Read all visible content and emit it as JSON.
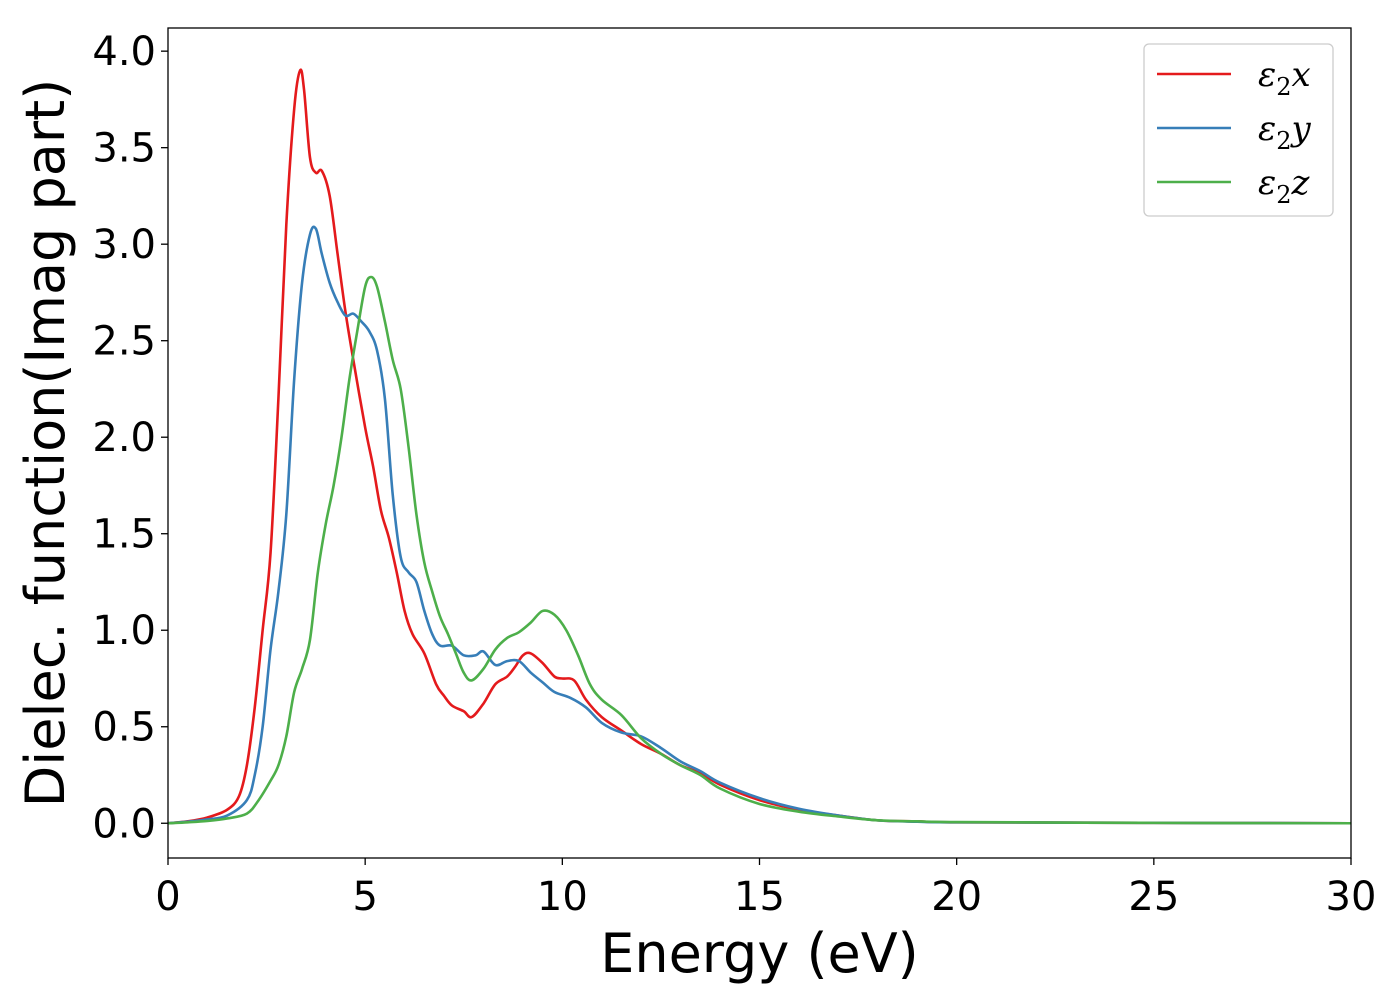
{
  "chart_data": {
    "type": "line",
    "title": "",
    "xlabel": "Energy (eV)",
    "ylabel": "Dielec. function(Imag part)",
    "xlim": [
      0,
      30
    ],
    "ylim": [
      -0.18,
      4.12
    ],
    "xticks": [
      0,
      5,
      10,
      15,
      20,
      25,
      30
    ],
    "xtick_labels": [
      "0",
      "5",
      "10",
      "15",
      "20",
      "25",
      "30"
    ],
    "yticks": [
      0.0,
      0.5,
      1.0,
      1.5,
      2.0,
      2.5,
      3.0,
      3.5,
      4.0
    ],
    "ytick_labels": [
      "0.0",
      "0.5",
      "1.0",
      "1.5",
      "2.0",
      "2.5",
      "3.0",
      "3.5",
      "4.0"
    ],
    "grid": false,
    "legend_position": "top-right",
    "series": [
      {
        "name": "ε₂x",
        "legend_base": "ε",
        "legend_sub": "2",
        "legend_suffix": "x",
        "color": "#e41a1c",
        "points": [
          [
            0,
            0
          ],
          [
            0.5,
            0.01
          ],
          [
            1.0,
            0.03
          ],
          [
            1.5,
            0.07
          ],
          [
            1.8,
            0.14
          ],
          [
            2.0,
            0.3
          ],
          [
            2.2,
            0.6
          ],
          [
            2.4,
            1.0
          ],
          [
            2.6,
            1.4
          ],
          [
            2.8,
            2.2
          ],
          [
            3.0,
            3.1
          ],
          [
            3.2,
            3.7
          ],
          [
            3.35,
            3.9
          ],
          [
            3.45,
            3.8
          ],
          [
            3.6,
            3.45
          ],
          [
            3.75,
            3.37
          ],
          [
            3.9,
            3.38
          ],
          [
            4.1,
            3.25
          ],
          [
            4.3,
            2.95
          ],
          [
            4.5,
            2.65
          ],
          [
            4.7,
            2.4
          ],
          [
            5.0,
            2.05
          ],
          [
            5.2,
            1.85
          ],
          [
            5.4,
            1.62
          ],
          [
            5.6,
            1.48
          ],
          [
            5.8,
            1.3
          ],
          [
            6.0,
            1.1
          ],
          [
            6.2,
            0.98
          ],
          [
            6.5,
            0.88
          ],
          [
            6.8,
            0.72
          ],
          [
            7.0,
            0.66
          ],
          [
            7.2,
            0.61
          ],
          [
            7.5,
            0.58
          ],
          [
            7.7,
            0.55
          ],
          [
            8.0,
            0.62
          ],
          [
            8.3,
            0.72
          ],
          [
            8.6,
            0.76
          ],
          [
            8.8,
            0.81
          ],
          [
            9.0,
            0.87
          ],
          [
            9.2,
            0.88
          ],
          [
            9.5,
            0.83
          ],
          [
            9.8,
            0.76
          ],
          [
            10.0,
            0.75
          ],
          [
            10.3,
            0.74
          ],
          [
            10.6,
            0.64
          ],
          [
            11.0,
            0.55
          ],
          [
            11.5,
            0.48
          ],
          [
            12.0,
            0.41
          ],
          [
            12.5,
            0.36
          ],
          [
            13.0,
            0.3
          ],
          [
            13.5,
            0.26
          ],
          [
            14.0,
            0.2
          ],
          [
            15.0,
            0.12
          ],
          [
            16.0,
            0.07
          ],
          [
            17.0,
            0.04
          ],
          [
            18.0,
            0.015
          ],
          [
            19.0,
            0.01
          ],
          [
            20.0,
            0.005
          ],
          [
            25.0,
            0.002
          ],
          [
            30.0,
            0.0
          ]
        ]
      },
      {
        "name": "ε₂y",
        "legend_base": "ε",
        "legend_sub": "2",
        "legend_suffix": "y",
        "color": "#377eb8",
        "points": [
          [
            0,
            0
          ],
          [
            0.5,
            0.008
          ],
          [
            1.0,
            0.02
          ],
          [
            1.5,
            0.04
          ],
          [
            2.0,
            0.12
          ],
          [
            2.2,
            0.25
          ],
          [
            2.4,
            0.5
          ],
          [
            2.6,
            0.9
          ],
          [
            2.8,
            1.2
          ],
          [
            3.0,
            1.6
          ],
          [
            3.2,
            2.3
          ],
          [
            3.4,
            2.8
          ],
          [
            3.6,
            3.05
          ],
          [
            3.75,
            3.08
          ],
          [
            3.9,
            2.95
          ],
          [
            4.1,
            2.8
          ],
          [
            4.3,
            2.7
          ],
          [
            4.5,
            2.63
          ],
          [
            4.7,
            2.64
          ],
          [
            4.9,
            2.6
          ],
          [
            5.1,
            2.55
          ],
          [
            5.3,
            2.45
          ],
          [
            5.5,
            2.2
          ],
          [
            5.7,
            1.7
          ],
          [
            5.9,
            1.38
          ],
          [
            6.1,
            1.3
          ],
          [
            6.3,
            1.25
          ],
          [
            6.5,
            1.1
          ],
          [
            6.7,
            0.98
          ],
          [
            6.9,
            0.92
          ],
          [
            7.2,
            0.92
          ],
          [
            7.5,
            0.87
          ],
          [
            7.8,
            0.87
          ],
          [
            8.0,
            0.89
          ],
          [
            8.3,
            0.82
          ],
          [
            8.6,
            0.84
          ],
          [
            8.9,
            0.84
          ],
          [
            9.2,
            0.78
          ],
          [
            9.5,
            0.73
          ],
          [
            9.8,
            0.68
          ],
          [
            10.2,
            0.65
          ],
          [
            10.6,
            0.6
          ],
          [
            11.0,
            0.52
          ],
          [
            11.5,
            0.47
          ],
          [
            12.0,
            0.45
          ],
          [
            12.5,
            0.39
          ],
          [
            13.0,
            0.32
          ],
          [
            13.5,
            0.27
          ],
          [
            14.0,
            0.21
          ],
          [
            15.0,
            0.13
          ],
          [
            16.0,
            0.075
          ],
          [
            17.0,
            0.04
          ],
          [
            18.0,
            0.015
          ],
          [
            19.0,
            0.008
          ],
          [
            20.0,
            0.005
          ],
          [
            25.0,
            0.002
          ],
          [
            30.0,
            0.0
          ]
        ]
      },
      {
        "name": "ε₂z",
        "legend_base": "ε",
        "legend_sub": "2",
        "legend_suffix": "z",
        "color": "#4daf4a",
        "points": [
          [
            0,
            0
          ],
          [
            0.5,
            0.005
          ],
          [
            1.0,
            0.012
          ],
          [
            1.5,
            0.025
          ],
          [
            2.0,
            0.05
          ],
          [
            2.3,
            0.12
          ],
          [
            2.6,
            0.22
          ],
          [
            2.8,
            0.3
          ],
          [
            3.0,
            0.45
          ],
          [
            3.2,
            0.68
          ],
          [
            3.4,
            0.8
          ],
          [
            3.6,
            0.95
          ],
          [
            3.8,
            1.3
          ],
          [
            4.0,
            1.55
          ],
          [
            4.2,
            1.75
          ],
          [
            4.4,
            2.0
          ],
          [
            4.6,
            2.3
          ],
          [
            4.8,
            2.55
          ],
          [
            5.0,
            2.78
          ],
          [
            5.15,
            2.83
          ],
          [
            5.3,
            2.78
          ],
          [
            5.5,
            2.6
          ],
          [
            5.7,
            2.4
          ],
          [
            5.9,
            2.25
          ],
          [
            6.1,
            1.95
          ],
          [
            6.3,
            1.6
          ],
          [
            6.5,
            1.35
          ],
          [
            6.7,
            1.2
          ],
          [
            6.9,
            1.07
          ],
          [
            7.1,
            0.98
          ],
          [
            7.3,
            0.88
          ],
          [
            7.5,
            0.78
          ],
          [
            7.7,
            0.74
          ],
          [
            8.0,
            0.8
          ],
          [
            8.3,
            0.9
          ],
          [
            8.6,
            0.96
          ],
          [
            8.9,
            0.99
          ],
          [
            9.2,
            1.04
          ],
          [
            9.5,
            1.1
          ],
          [
            9.8,
            1.08
          ],
          [
            10.1,
            1.0
          ],
          [
            10.4,
            0.87
          ],
          [
            10.7,
            0.72
          ],
          [
            11.0,
            0.64
          ],
          [
            11.5,
            0.56
          ],
          [
            12.0,
            0.44
          ],
          [
            12.5,
            0.36
          ],
          [
            13.0,
            0.3
          ],
          [
            13.5,
            0.25
          ],
          [
            14.0,
            0.18
          ],
          [
            15.0,
            0.1
          ],
          [
            16.0,
            0.06
          ],
          [
            17.0,
            0.035
          ],
          [
            18.0,
            0.015
          ],
          [
            19.0,
            0.01
          ],
          [
            20.0,
            0.006
          ],
          [
            25.0,
            0.002
          ],
          [
            30.0,
            0.0
          ]
        ]
      }
    ]
  }
}
